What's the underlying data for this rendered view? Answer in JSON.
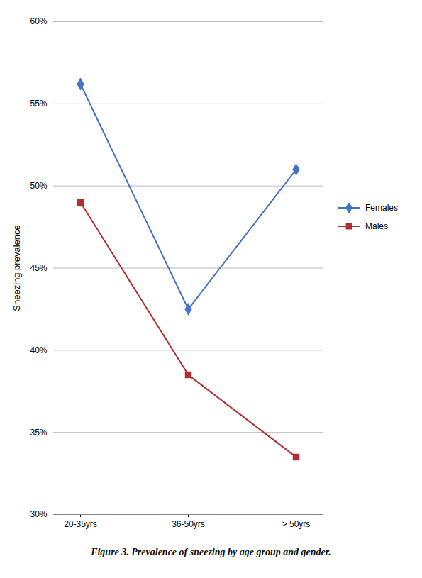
{
  "chart_data": {
    "type": "line",
    "caption": "Figure 3. Prevalence of sneezing by age group and gender.",
    "ylabel": "Sneezing prevalence",
    "categories": [
      "20-35yrs",
      "36-50yrs",
      "> 50yrs"
    ],
    "series": [
      {
        "name": "Females",
        "color": "#4472C4",
        "marker": "diamond",
        "values": [
          0.562,
          0.425,
          0.51
        ]
      },
      {
        "name": "Males",
        "color": "#B03030",
        "marker": "square",
        "values": [
          0.49,
          0.385,
          0.335
        ]
      }
    ],
    "ylim": [
      0.3,
      0.6
    ],
    "yticks": [
      {
        "value": 0.3,
        "label": "30%"
      },
      {
        "value": 0.35,
        "label": "35%"
      },
      {
        "value": 0.4,
        "label": "40%"
      },
      {
        "value": 0.45,
        "label": "45%"
      },
      {
        "value": 0.5,
        "label": "50%"
      },
      {
        "value": 0.55,
        "label": "55%"
      },
      {
        "value": 0.6,
        "label": "60%"
      }
    ],
    "grid": true,
    "legend": "right"
  }
}
